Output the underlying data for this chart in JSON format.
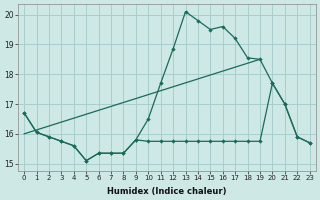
{
  "background_color": "#cde8e5",
  "grid_color": "#a8cece",
  "line_color": "#1a6b5a",
  "x_label": "Humidex (Indice chaleur)",
  "xlim": [
    -0.5,
    23.5
  ],
  "ylim": [
    14.75,
    20.35
  ],
  "yticks": [
    15,
    16,
    17,
    18,
    19,
    20
  ],
  "xticks": [
    0,
    1,
    2,
    3,
    4,
    5,
    6,
    7,
    8,
    9,
    10,
    11,
    12,
    13,
    14,
    15,
    16,
    17,
    18,
    19,
    20,
    21,
    22,
    23
  ],
  "line_main_x": [
    0,
    1,
    2,
    3,
    4,
    5,
    6,
    7,
    8,
    9,
    10,
    11,
    12,
    13,
    14,
    15,
    16,
    17,
    18,
    19,
    20,
    21,
    22,
    23
  ],
  "line_main_y": [
    16.7,
    16.05,
    15.9,
    15.75,
    15.6,
    15.1,
    15.35,
    15.35,
    15.35,
    15.8,
    16.5,
    17.7,
    18.85,
    20.1,
    19.8,
    19.5,
    19.6,
    19.2,
    18.55,
    18.5,
    17.7,
    17.0,
    15.9,
    15.7
  ],
  "line_trend_x": [
    0,
    19
  ],
  "line_trend_y": [
    16.0,
    18.5
  ],
  "line_flat_x": [
    0,
    1,
    2,
    3,
    4,
    5,
    6,
    7,
    8,
    9,
    10,
    11,
    12,
    13,
    14,
    15,
    16,
    17,
    18,
    19,
    20,
    21,
    22,
    23
  ],
  "line_flat_y": [
    16.7,
    16.05,
    15.9,
    15.75,
    15.6,
    15.1,
    15.35,
    15.35,
    15.35,
    15.8,
    15.75,
    15.75,
    15.75,
    15.75,
    15.75,
    15.75,
    15.75,
    15.75,
    15.75,
    15.75,
    17.7,
    17.0,
    15.9,
    15.7
  ]
}
